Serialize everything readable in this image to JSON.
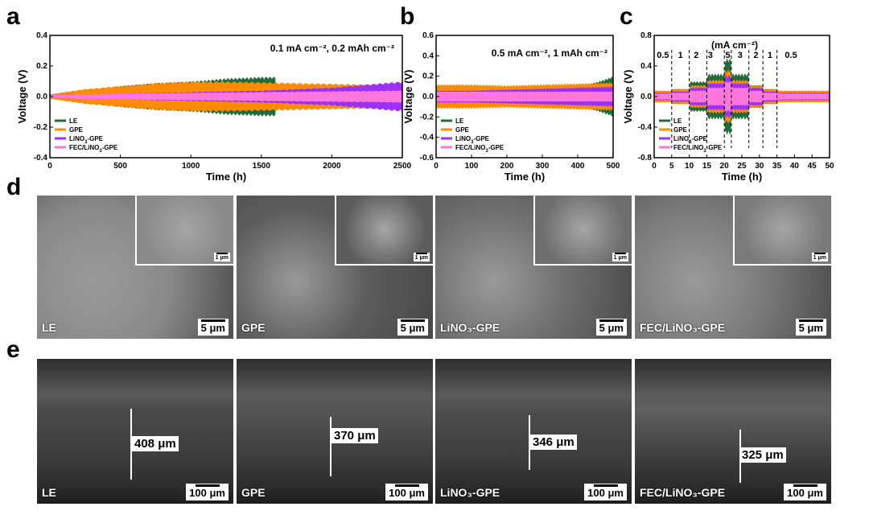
{
  "panels": {
    "a": "a",
    "b": "b",
    "c": "c",
    "d": "d",
    "e": "e"
  },
  "legend": [
    "LE",
    "GPE",
    "LiNO3-GPE",
    "FEC/LiNO3-GPE"
  ],
  "colors": {
    "LE": "#1f6b3a",
    "GPE": "#ff8c00",
    "LiNO3-GPE": "#9b30ff",
    "FEC/LiNO3-GPE": "#ff77dd"
  },
  "chart_data": [
    {
      "type": "area",
      "id": "a",
      "annotation": "0.1 mA cm⁻², 0.2 mAh cm⁻²",
      "xlabel": "Time (h)",
      "ylabel": "Voltage (V)",
      "xlim": [
        0,
        2500
      ],
      "ylim": [
        -0.4,
        0.4
      ],
      "xticks": [
        0,
        500,
        1000,
        1500,
        2000,
        2500
      ],
      "yticks": [
        -0.4,
        -0.2,
        0.0,
        0.2,
        0.4
      ],
      "series": [
        {
          "name": "LE",
          "x": [
            0,
            250,
            500,
            750,
            1000,
            1250,
            1500,
            1600
          ],
          "amp": [
            0.015,
            0.04,
            0.07,
            0.09,
            0.1,
            0.12,
            0.13,
            0.13
          ]
        },
        {
          "name": "GPE",
          "x": [
            0,
            250,
            500,
            750,
            1000,
            1250,
            1500,
            1750,
            2000,
            2250,
            2500
          ],
          "amp": [
            0.015,
            0.05,
            0.07,
            0.09,
            0.1,
            0.1,
            0.095,
            0.09,
            0.085,
            0.08,
            0.075
          ]
        },
        {
          "name": "LiNO3-GPE",
          "x": [
            0,
            500,
            1000,
            1500,
            2000,
            2250,
            2500
          ],
          "amp": [
            0.01,
            0.02,
            0.03,
            0.04,
            0.06,
            0.08,
            0.1
          ]
        },
        {
          "name": "FEC/LiNO3-GPE",
          "x": [
            0,
            500,
            1000,
            1500,
            2000,
            2500
          ],
          "amp": [
            0.01,
            0.02,
            0.025,
            0.03,
            0.035,
            0.04
          ]
        }
      ]
    },
    {
      "type": "area",
      "id": "b",
      "annotation": "0.5 mA cm⁻², 1 mAh cm⁻²",
      "xlabel": "Time (h)",
      "ylabel": "Voltage (V)",
      "xlim": [
        0,
        500
      ],
      "ylim": [
        -0.6,
        0.6
      ],
      "xticks": [
        0,
        100,
        200,
        300,
        400,
        500
      ],
      "yticks": [
        -0.6,
        -0.4,
        -0.2,
        0.0,
        0.2,
        0.4,
        0.6
      ],
      "series": [
        {
          "name": "LE",
          "x": [
            0,
            100,
            200,
            300,
            400,
            450,
            500
          ],
          "amp": [
            0.05,
            0.06,
            0.07,
            0.08,
            0.1,
            0.14,
            0.2
          ]
        },
        {
          "name": "GPE",
          "x": [
            0,
            100,
            200,
            300,
            400,
            500
          ],
          "amp": [
            0.12,
            0.12,
            0.11,
            0.12,
            0.13,
            0.14
          ]
        },
        {
          "name": "LiNO3-GPE",
          "x": [
            0,
            100,
            200,
            300,
            400,
            500
          ],
          "amp": [
            0.06,
            0.06,
            0.07,
            0.08,
            0.09,
            0.1
          ]
        },
        {
          "name": "FEC/LiNO3-GPE",
          "x": [
            0,
            100,
            200,
            300,
            400,
            500
          ],
          "amp": [
            0.05,
            0.05,
            0.05,
            0.05,
            0.05,
            0.05
          ]
        }
      ]
    },
    {
      "type": "area",
      "id": "c",
      "annotation": "(mA cm⁻²)",
      "xlabel": "Time (h)",
      "ylabel": "Voltage (V)",
      "xlim": [
        0,
        50
      ],
      "ylim": [
        -0.8,
        0.8
      ],
      "xticks": [
        0,
        5,
        10,
        15,
        20,
        25,
        30,
        35,
        40,
        45,
        50
      ],
      "yticks": [
        -0.8,
        -0.4,
        0.0,
        0.4,
        0.8
      ],
      "rate_labels": [
        "0.5",
        "1",
        "2",
        "3",
        "5",
        "3",
        "2",
        "1",
        "0.5"
      ],
      "rate_boundaries": [
        5,
        10,
        15,
        20,
        22,
        27,
        31,
        35
      ],
      "rate_label_x": [
        2.5,
        7.5,
        12,
        16,
        21,
        24.5,
        29,
        33,
        39
      ],
      "series": [
        {
          "name": "LE",
          "x": [
            0,
            5,
            5,
            10,
            10,
            15,
            15,
            20,
            20,
            22,
            22,
            27,
            27,
            31,
            31,
            35,
            35,
            50
          ],
          "amp": [
            0.06,
            0.06,
            0.1,
            0.1,
            0.2,
            0.2,
            0.3,
            0.3,
            0.5,
            0.5,
            0.3,
            0.3,
            0.15,
            0.15,
            0.1,
            0.1,
            0.05,
            0.05
          ]
        },
        {
          "name": "GPE",
          "x": [
            0,
            5,
            5,
            10,
            10,
            15,
            15,
            20,
            20,
            22,
            22,
            27,
            27,
            31,
            31,
            35,
            35,
            50
          ],
          "amp": [
            0.08,
            0.08,
            0.1,
            0.1,
            0.15,
            0.15,
            0.22,
            0.22,
            0.35,
            0.35,
            0.22,
            0.22,
            0.15,
            0.15,
            0.1,
            0.1,
            0.08,
            0.08
          ]
        },
        {
          "name": "LiNO3-GPE",
          "x": [
            0,
            5,
            5,
            10,
            10,
            15,
            15,
            20,
            20,
            22,
            22,
            27,
            27,
            31,
            31,
            35,
            35,
            50
          ],
          "amp": [
            0.05,
            0.05,
            0.07,
            0.07,
            0.12,
            0.12,
            0.18,
            0.18,
            0.28,
            0.28,
            0.18,
            0.18,
            0.12,
            0.12,
            0.07,
            0.07,
            0.05,
            0.05
          ]
        },
        {
          "name": "FEC/LiNO3-GPE",
          "x": [
            0,
            5,
            5,
            10,
            10,
            15,
            15,
            20,
            20,
            22,
            22,
            27,
            27,
            31,
            31,
            35,
            35,
            50
          ],
          "amp": [
            0.04,
            0.04,
            0.05,
            0.05,
            0.08,
            0.08,
            0.12,
            0.12,
            0.2,
            0.2,
            0.12,
            0.12,
            0.08,
            0.08,
            0.05,
            0.05,
            0.04,
            0.04
          ]
        }
      ]
    }
  ],
  "sem_top": [
    {
      "label": "LE",
      "scale": "5 μm",
      "inset_scale": "1 μm",
      "tone": "#8a8a8a"
    },
    {
      "label": "GPE",
      "scale": "5 μm",
      "inset_scale": "1 μm",
      "tone": "#5c5c5c"
    },
    {
      "label": "LiNO₃-GPE",
      "scale": "5 μm",
      "inset_scale": "1 μm",
      "tone": "#6e6e6e"
    },
    {
      "label": "FEC/LiNO₃-GPE",
      "scale": "5 μm",
      "inset_scale": "1 μm",
      "tone": "#7a7a7a"
    }
  ],
  "sem_bottom": [
    {
      "label": "LE",
      "scale": "100 μm",
      "thickness": "408 μm",
      "tone": "#4a4a4a"
    },
    {
      "label": "GPE",
      "scale": "100 μm",
      "thickness": "370 μm",
      "tone": "#555555"
    },
    {
      "label": "LiNO₃-GPE",
      "scale": "100 μm",
      "thickness": "346 μm",
      "tone": "#4e4e4e"
    },
    {
      "label": "FEC/LiNO₃-GPE",
      "scale": "100 μm",
      "thickness": "325 μm",
      "tone": "#606060"
    }
  ]
}
